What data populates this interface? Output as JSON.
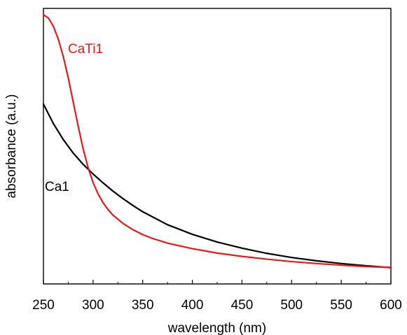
{
  "chart_data": {
    "type": "line",
    "title": "",
    "xlabel": "wavelength (nm)",
    "ylabel": "absorbance (a.u.)",
    "xlim": [
      250,
      600
    ],
    "ylim": [
      0,
      1
    ],
    "xticks": [
      250,
      300,
      350,
      400,
      450,
      500,
      550,
      600
    ],
    "yticks_shown": false,
    "grid": false,
    "legend": "inline labels",
    "series": [
      {
        "name": "CaTi1",
        "color": "#e31a1c",
        "x": [
          250,
          255,
          260,
          265,
          270,
          275,
          280,
          285,
          290,
          295,
          300,
          305,
          310,
          315,
          320,
          330,
          340,
          350,
          360,
          375,
          400,
          425,
          450,
          475,
          500,
          525,
          550,
          575,
          600
        ],
        "y": [
          0.977,
          0.965,
          0.935,
          0.888,
          0.825,
          0.748,
          0.66,
          0.573,
          0.49,
          0.422,
          0.368,
          0.327,
          0.295,
          0.27,
          0.25,
          0.22,
          0.197,
          0.179,
          0.165,
          0.148,
          0.128,
          0.112,
          0.1,
          0.09,
          0.081,
          0.074,
          0.068,
          0.063,
          0.06
        ]
      },
      {
        "name": "Ca1",
        "color": "#000000",
        "x": [
          250,
          260,
          270,
          280,
          290,
          300,
          310,
          320,
          330,
          340,
          350,
          375,
          400,
          425,
          450,
          475,
          500,
          525,
          550,
          575,
          600
        ],
        "y": [
          0.653,
          0.582,
          0.524,
          0.475,
          0.434,
          0.399,
          0.367,
          0.337,
          0.31,
          0.285,
          0.262,
          0.215,
          0.18,
          0.152,
          0.13,
          0.111,
          0.096,
          0.084,
          0.074,
          0.066,
          0.059
        ]
      }
    ]
  }
}
